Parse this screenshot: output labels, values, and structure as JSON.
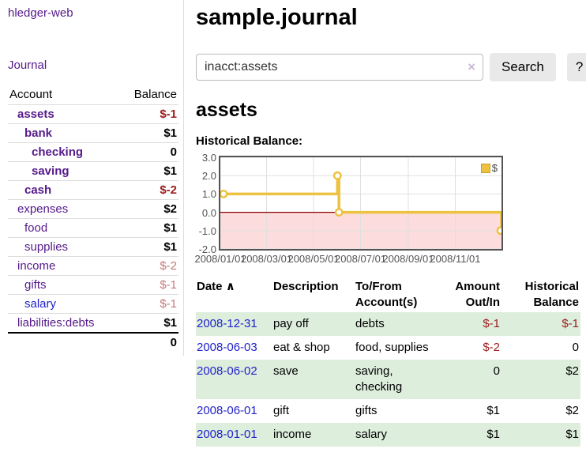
{
  "app": {
    "title": "hledger-web",
    "nav_journal": "Journal"
  },
  "sidebar": {
    "account_header": "Account",
    "balance_header": "Balance",
    "accounts": [
      {
        "name": "assets",
        "indent": 1,
        "bold": true,
        "balance": "$-1",
        "balance_style": "neg-strong"
      },
      {
        "name": "bank",
        "indent": 2,
        "bold": true,
        "balance": "$1",
        "balance_style": "pos"
      },
      {
        "name": "checking",
        "indent": 3,
        "bold": true,
        "balance": "0",
        "balance_style": "pos"
      },
      {
        "name": "saving",
        "indent": 3,
        "bold": true,
        "balance": "$1",
        "balance_style": "pos"
      },
      {
        "name": "cash",
        "indent": 2,
        "bold": true,
        "balance": "$-2",
        "balance_style": "neg-strong"
      },
      {
        "name": "expenses",
        "indent": 1,
        "bold": false,
        "balance": "$2",
        "balance_style": "pos"
      },
      {
        "name": "food",
        "indent": 2,
        "bold": false,
        "balance": "$1",
        "balance_style": "pos"
      },
      {
        "name": "supplies",
        "indent": 2,
        "bold": false,
        "balance": "$1",
        "balance_style": "pos"
      },
      {
        "name": "income",
        "indent": 1,
        "bold": false,
        "balance": "$-2",
        "balance_style": "neg-soft"
      },
      {
        "name": "gifts",
        "indent": 2,
        "bold": false,
        "balance": "$-1",
        "balance_style": "neg-soft"
      },
      {
        "name": "salary",
        "indent": 2,
        "bold": false,
        "link_color": "blue",
        "balance": "$-1",
        "balance_style": "neg-soft"
      },
      {
        "name": "liabilities:debts",
        "indent": 1,
        "bold": false,
        "balance": "$1",
        "balance_style": "pos"
      }
    ],
    "total": "0"
  },
  "header": {
    "title": "sample.journal"
  },
  "search": {
    "value": "inacct:assets",
    "clear_icon": "×",
    "button_label": "Search",
    "help_label": "?"
  },
  "account_page": {
    "heading": "assets",
    "chart_label": "Historical Balance:"
  },
  "chart_data": {
    "type": "line",
    "step": true,
    "title": "Historical Balance",
    "series": [
      {
        "name": "$",
        "color": "#edc240",
        "points": [
          {
            "date": "2008-01-01",
            "value": 1
          },
          {
            "date": "2008-06-01",
            "value": 2
          },
          {
            "date": "2008-06-03",
            "value": 0
          },
          {
            "date": "2008-12-31",
            "value": -1
          }
        ]
      }
    ],
    "x_range": {
      "start": "2008-01-01",
      "end": "2008-12-31"
    },
    "x_ticks": [
      {
        "date": "2008-01-01",
        "label": "2008/01/01"
      },
      {
        "date": "2008-03-01",
        "label": "2008/03/01"
      },
      {
        "date": "2008-05-01",
        "label": "2008/05/01"
      },
      {
        "date": "2008-07-01",
        "label": "2008/07/01"
      },
      {
        "date": "2008-09-01",
        "label": "2008/09/01"
      },
      {
        "date": "2008-11-01",
        "label": "2008/11/01"
      }
    ],
    "y_ticks": [
      {
        "value": 3,
        "label": "3.0"
      },
      {
        "value": 2,
        "label": "2.0"
      },
      {
        "value": 1,
        "label": "1.0"
      },
      {
        "value": 0,
        "label": "0.0"
      },
      {
        "value": -1,
        "label": "-1.0"
      },
      {
        "value": -2,
        "label": "-2.0"
      }
    ],
    "ylim": [
      -2,
      3
    ],
    "legend": {
      "label": "$",
      "position": "top-right"
    },
    "colors": {
      "negative_region": "#fcdcdc",
      "zero_line": "#8b0000",
      "grid": "#e0e0e0",
      "border": "#545454",
      "marker_fill": "#ffffff"
    }
  },
  "register": {
    "sort_icon": "∧",
    "columns": [
      {
        "label": "Date",
        "sorted": true,
        "align": "left"
      },
      {
        "label": "Description",
        "align": "left"
      },
      {
        "label": "To/From Account(s)",
        "align": "left"
      },
      {
        "label": "Amount Out/In",
        "align": "right"
      },
      {
        "label": "Historical Balance",
        "align": "right"
      }
    ],
    "rows": [
      {
        "date": "2008-12-31",
        "description": "pay off",
        "accounts": "debts",
        "amount": "$-1",
        "amount_negative": true,
        "balance": "$-1",
        "balance_negative": true
      },
      {
        "date": "2008-06-03",
        "description": "eat & shop",
        "accounts": "food, supplies",
        "amount": "$-2",
        "amount_negative": true,
        "balance": "0",
        "balance_negative": false
      },
      {
        "date": "2008-06-02",
        "description": "save",
        "accounts": "saving, checking",
        "amount": "0",
        "amount_negative": false,
        "balance": "$2",
        "balance_negative": false
      },
      {
        "date": "2008-06-01",
        "description": "gift",
        "accounts": "gifts",
        "amount": "$1",
        "amount_negative": false,
        "balance": "$2",
        "balance_negative": false
      },
      {
        "date": "2008-01-01",
        "description": "income",
        "accounts": "salary",
        "amount": "$1",
        "amount_negative": false,
        "balance": "$1",
        "balance_negative": false
      }
    ]
  }
}
